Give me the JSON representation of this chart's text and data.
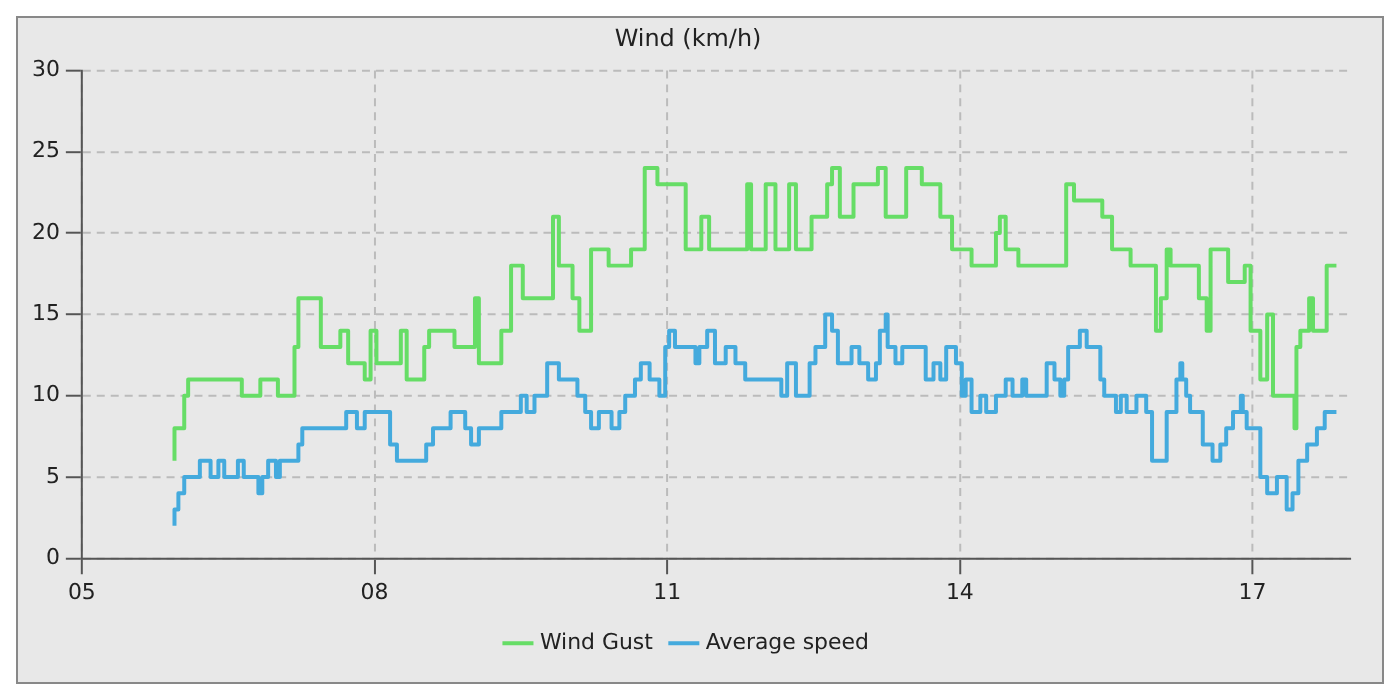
{
  "chart_data": {
    "type": "step",
    "title": "Wind (km/h)",
    "xlim": [
      5,
      18
    ],
    "xticks": [
      {
        "value": 5,
        "label": "05"
      },
      {
        "value": 8,
        "label": "08"
      },
      {
        "value": 11,
        "label": "11"
      },
      {
        "value": 14,
        "label": "14"
      },
      {
        "value": 17,
        "label": "17"
      }
    ],
    "ylim": [
      0,
      30
    ],
    "yticks": [
      0,
      5,
      10,
      15,
      20,
      25,
      30
    ],
    "grid": true,
    "legend": "bottom",
    "marker": "none",
    "line_style": "solid",
    "series": [
      {
        "name": "Wind Gust",
        "color": "#66dd66",
        "x": [
          5.95,
          6.05,
          6.09,
          6.64,
          6.83,
          7.01,
          7.18,
          7.22,
          7.45,
          7.65,
          7.73,
          7.9,
          7.96,
          8.02,
          8.27,
          8.33,
          8.51,
          8.56,
          8.82,
          9.03,
          9.07,
          9.3,
          9.4,
          9.52,
          9.83,
          9.89,
          10.03,
          10.1,
          10.22,
          10.4,
          10.63,
          10.77,
          10.9,
          11.19,
          11.35,
          11.43,
          11.82,
          11.86,
          12.01,
          12.11,
          12.25,
          12.32,
          12.48,
          12.64,
          12.69,
          12.77,
          12.91,
          13.16,
          13.24,
          13.45,
          13.61,
          13.8,
          13.92,
          14.12,
          14.37,
          14.41,
          14.47,
          14.6,
          14.74,
          15.09,
          15.17,
          15.46,
          15.56,
          15.75,
          16.01,
          16.06,
          16.12,
          16.16,
          16.45,
          16.53,
          16.57,
          16.75,
          16.92,
          16.98,
          17.08,
          17.15,
          17.21,
          17.43,
          17.45,
          17.49,
          17.58,
          17.62,
          17.76,
          17.86
        ],
        "values": [
          6,
          8,
          10,
          11,
          10,
          11,
          10,
          13,
          16,
          13,
          14,
          12,
          11,
          14,
          12,
          14,
          11,
          13,
          14,
          13,
          16,
          12,
          14,
          18,
          16,
          21,
          18,
          16,
          14,
          19,
          18,
          19,
          24,
          23,
          19,
          21,
          19,
          23,
          19,
          23,
          19,
          23,
          19,
          21,
          23,
          24,
          21,
          23,
          24,
          21,
          24,
          23,
          21,
          19,
          18,
          20,
          21,
          19,
          18,
          18,
          23,
          22,
          21,
          19,
          18,
          14,
          16,
          19,
          18,
          16,
          14,
          19,
          17,
          18,
          14,
          11,
          15,
          10,
          8,
          13,
          14,
          16,
          14,
          18
        ]
      },
      {
        "name": "Average speed",
        "color": "#44aadd",
        "x": [
          5.95,
          5.99,
          6.05,
          6.21,
          6.32,
          6.4,
          6.46,
          6.6,
          6.66,
          6.81,
          6.85,
          6.91,
          6.99,
          7.03,
          7.22,
          7.26,
          7.71,
          7.82,
          7.9,
          8.16,
          8.23,
          8.53,
          8.6,
          8.78,
          8.93,
          8.99,
          9.07,
          9.3,
          9.5,
          9.56,
          9.64,
          9.77,
          9.89,
          10.08,
          10.16,
          10.22,
          10.3,
          10.43,
          10.51,
          10.57,
          10.67,
          10.73,
          10.82,
          10.92,
          10.98,
          11.02,
          11.08,
          11.29,
          11.33,
          11.41,
          11.49,
          11.6,
          11.7,
          11.8,
          12.17,
          12.23,
          12.32,
          12.46,
          12.52,
          12.62,
          12.69,
          12.75,
          12.89,
          12.97,
          13.06,
          13.14,
          13.18,
          13.24,
          13.26,
          13.34,
          13.41,
          13.65,
          13.73,
          13.8,
          13.86,
          13.96,
          14.02,
          14.06,
          14.12,
          14.21,
          14.27,
          14.37,
          14.47,
          14.54,
          14.64,
          14.68,
          14.89,
          14.97,
          15.03,
          15.07,
          15.11,
          15.23,
          15.3,
          15.44,
          15.48,
          15.6,
          15.65,
          15.71,
          15.81,
          15.91,
          15.97,
          16.12,
          16.22,
          16.26,
          16.28,
          16.32,
          16.36,
          16.49,
          16.59,
          16.67,
          16.73,
          16.8,
          16.88,
          16.9,
          16.94,
          17.08,
          17.15,
          17.25,
          17.35,
          17.41,
          17.47,
          17.56,
          17.66,
          17.74,
          17.86
        ],
        "values": [
          2,
          3,
          4,
          5,
          6,
          5,
          6,
          5,
          6,
          5,
          4,
          5,
          6,
          5,
          6,
          7,
          8,
          9,
          8,
          9,
          7,
          6,
          7,
          8,
          9,
          8,
          7,
          8,
          9,
          10,
          9,
          10,
          12,
          11,
          10,
          9,
          8,
          9,
          8,
          9,
          10,
          11,
          12,
          11,
          10,
          13,
          14,
          13,
          12,
          13,
          14,
          12,
          13,
          12,
          11,
          10,
          12,
          10,
          12,
          13,
          15,
          14,
          12,
          13,
          12,
          11,
          12,
          14,
          15,
          13,
          12,
          13,
          11,
          12,
          11,
          13,
          12,
          10,
          11,
          9,
          10,
          9,
          10,
          11,
          10,
          11,
          10,
          12,
          11,
          10,
          11,
          13,
          14,
          13,
          11,
          10,
          9,
          10,
          9,
          10,
          9,
          6,
          9,
          11,
          12,
          11,
          10,
          9,
          7,
          6,
          7,
          8,
          9,
          10,
          9,
          8,
          5,
          4,
          5,
          3,
          4,
          6,
          7,
          8,
          9
        ]
      }
    ]
  }
}
